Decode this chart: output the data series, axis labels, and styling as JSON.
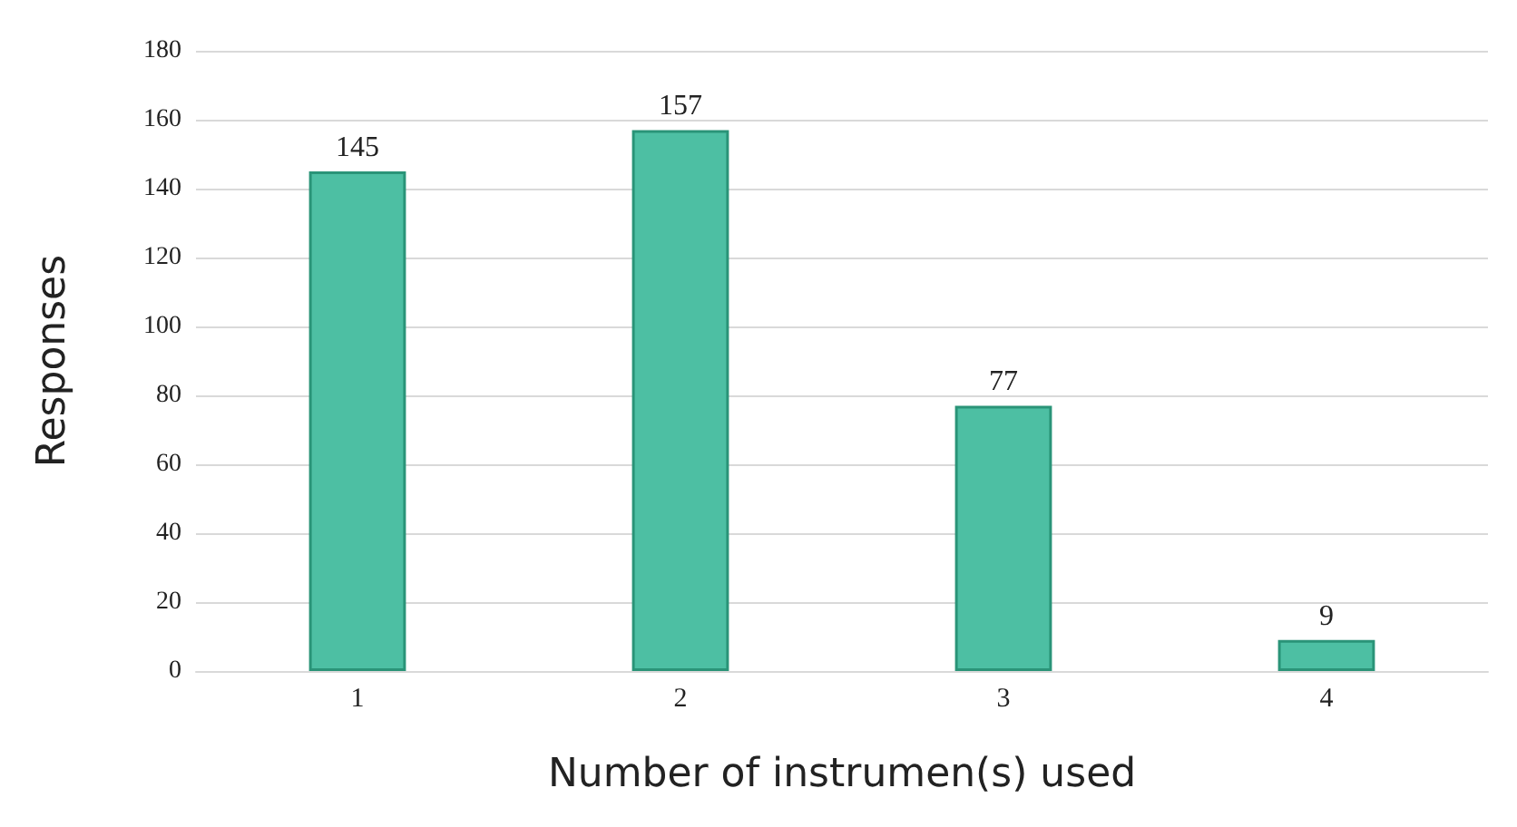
{
  "chart_data": {
    "type": "bar",
    "xlabel": "Number of instrumen(s) used",
    "ylabel": "Responses",
    "categories": [
      "1",
      "2",
      "3",
      "4"
    ],
    "values": [
      145,
      157,
      77,
      9
    ],
    "color": "#4dbfa3",
    "ylim": [
      0,
      180
    ],
    "yticks": [
      0,
      20,
      40,
      60,
      80,
      100,
      120,
      140,
      160,
      180
    ],
    "grid": "y",
    "data_labels": true
  }
}
